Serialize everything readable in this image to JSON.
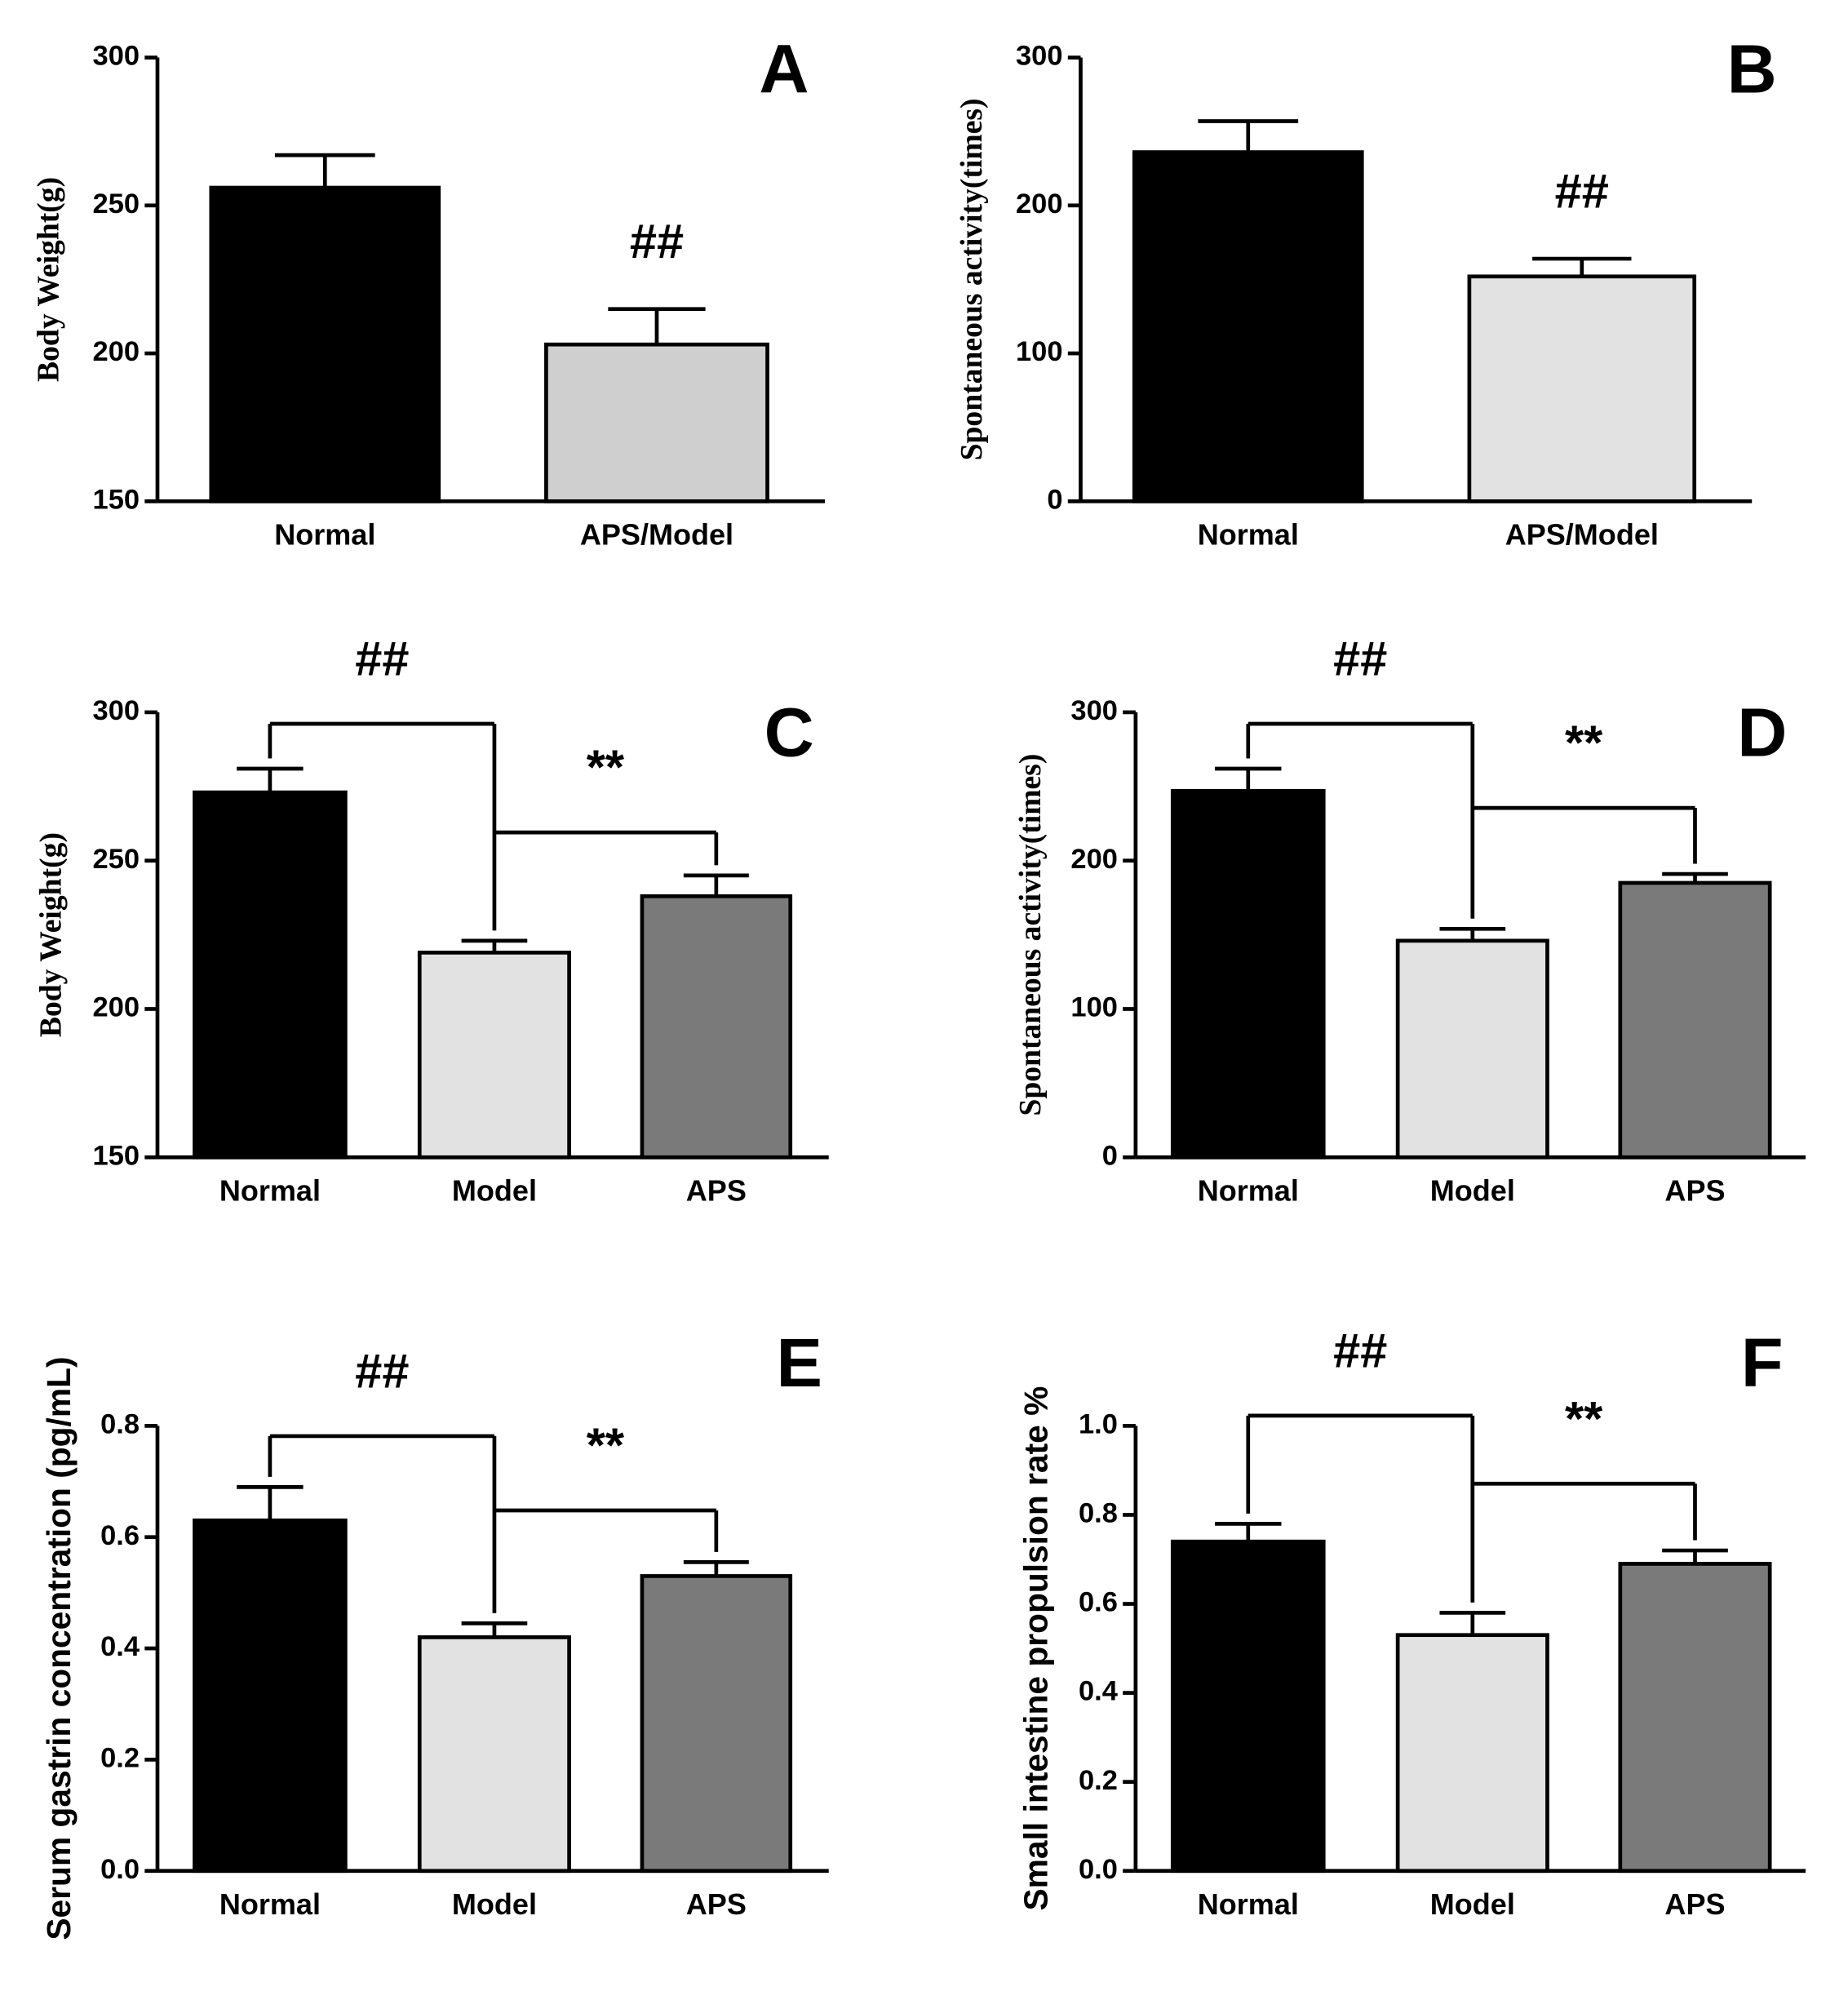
{
  "chart_data": [
    {
      "type": "bar",
      "label": "A",
      "ylabel": "Body Weight(g)",
      "categories": [
        "Normal",
        "APS/Model"
      ],
      "values": [
        256,
        203
      ],
      "errors": [
        11,
        12
      ],
      "colors": [
        "#000000",
        "#cfcfcf"
      ],
      "ylim": [
        150,
        300
      ],
      "yticks": [
        150,
        200,
        250,
        300
      ],
      "annotations": [
        "##"
      ]
    },
    {
      "type": "bar",
      "label": "B",
      "ylabel": "Spontaneous activity(times)",
      "categories": [
        "Normal",
        "APS/Model"
      ],
      "values": [
        236,
        152
      ],
      "errors": [
        21,
        12
      ],
      "colors": [
        "#000000",
        "#e2e2e2"
      ],
      "ylim": [
        0,
        300
      ],
      "yticks": [
        0,
        100,
        200,
        300
      ],
      "annotations": [
        "##"
      ]
    },
    {
      "type": "bar",
      "label": "C",
      "ylabel": "Body Weight(g)",
      "categories": [
        "Normal",
        "Model",
        "APS"
      ],
      "values": [
        273,
        219,
        238
      ],
      "errors": [
        8,
        4,
        7
      ],
      "colors": [
        "#000000",
        "#e2e2e2",
        "#7a7a7a"
      ],
      "ylim": [
        150,
        300
      ],
      "yticks": [
        150,
        200,
        250,
        300
      ],
      "annotations": [
        "##",
        "**"
      ]
    },
    {
      "type": "bar",
      "label": "D",
      "ylabel": "Spontaneous activity(times)",
      "categories": [
        "Normal",
        "Model",
        "APS"
      ],
      "values": [
        247,
        146,
        185
      ],
      "errors": [
        15,
        8,
        6
      ],
      "colors": [
        "#000000",
        "#e2e2e2",
        "#7a7a7a"
      ],
      "ylim": [
        0,
        300
      ],
      "yticks": [
        0,
        100,
        200,
        300
      ],
      "annotations": [
        "##",
        "**"
      ]
    },
    {
      "type": "bar",
      "label": "E",
      "ylabel": "Serum gastrin concentration (pg/mL)",
      "categories": [
        "Normal",
        "Model",
        "APS"
      ],
      "values": [
        0.63,
        0.42,
        0.53
      ],
      "errors": [
        0.06,
        0.025,
        0.025
      ],
      "colors": [
        "#000000",
        "#e2e2e2",
        "#7a7a7a"
      ],
      "ylim": [
        0,
        0.8
      ],
      "yticks": [
        {
          "value": 0,
          "label": "0.0"
        },
        0.2,
        0.4,
        0.6,
        0.8
      ],
      "annotations": [
        "##",
        "**"
      ]
    },
    {
      "type": "bar",
      "label": "F",
      "ylabel": "Small intestine propulsion rate %",
      "categories": [
        "Normal",
        "Model",
        "APS"
      ],
      "values": [
        0.74,
        0.53,
        0.69
      ],
      "errors": [
        0.04,
        0.05,
        0.03
      ],
      "colors": [
        "#000000",
        "#e2e2e2",
        "#7a7a7a"
      ],
      "ylim": [
        0,
        1.0
      ],
      "yticks": [
        {
          "value": 0,
          "label": "0.0"
        },
        0.2,
        0.4,
        0.6,
        0.8,
        {
          "value": 1.0,
          "label": "1.0"
        }
      ],
      "annotations": [
        "##",
        "**"
      ]
    }
  ]
}
